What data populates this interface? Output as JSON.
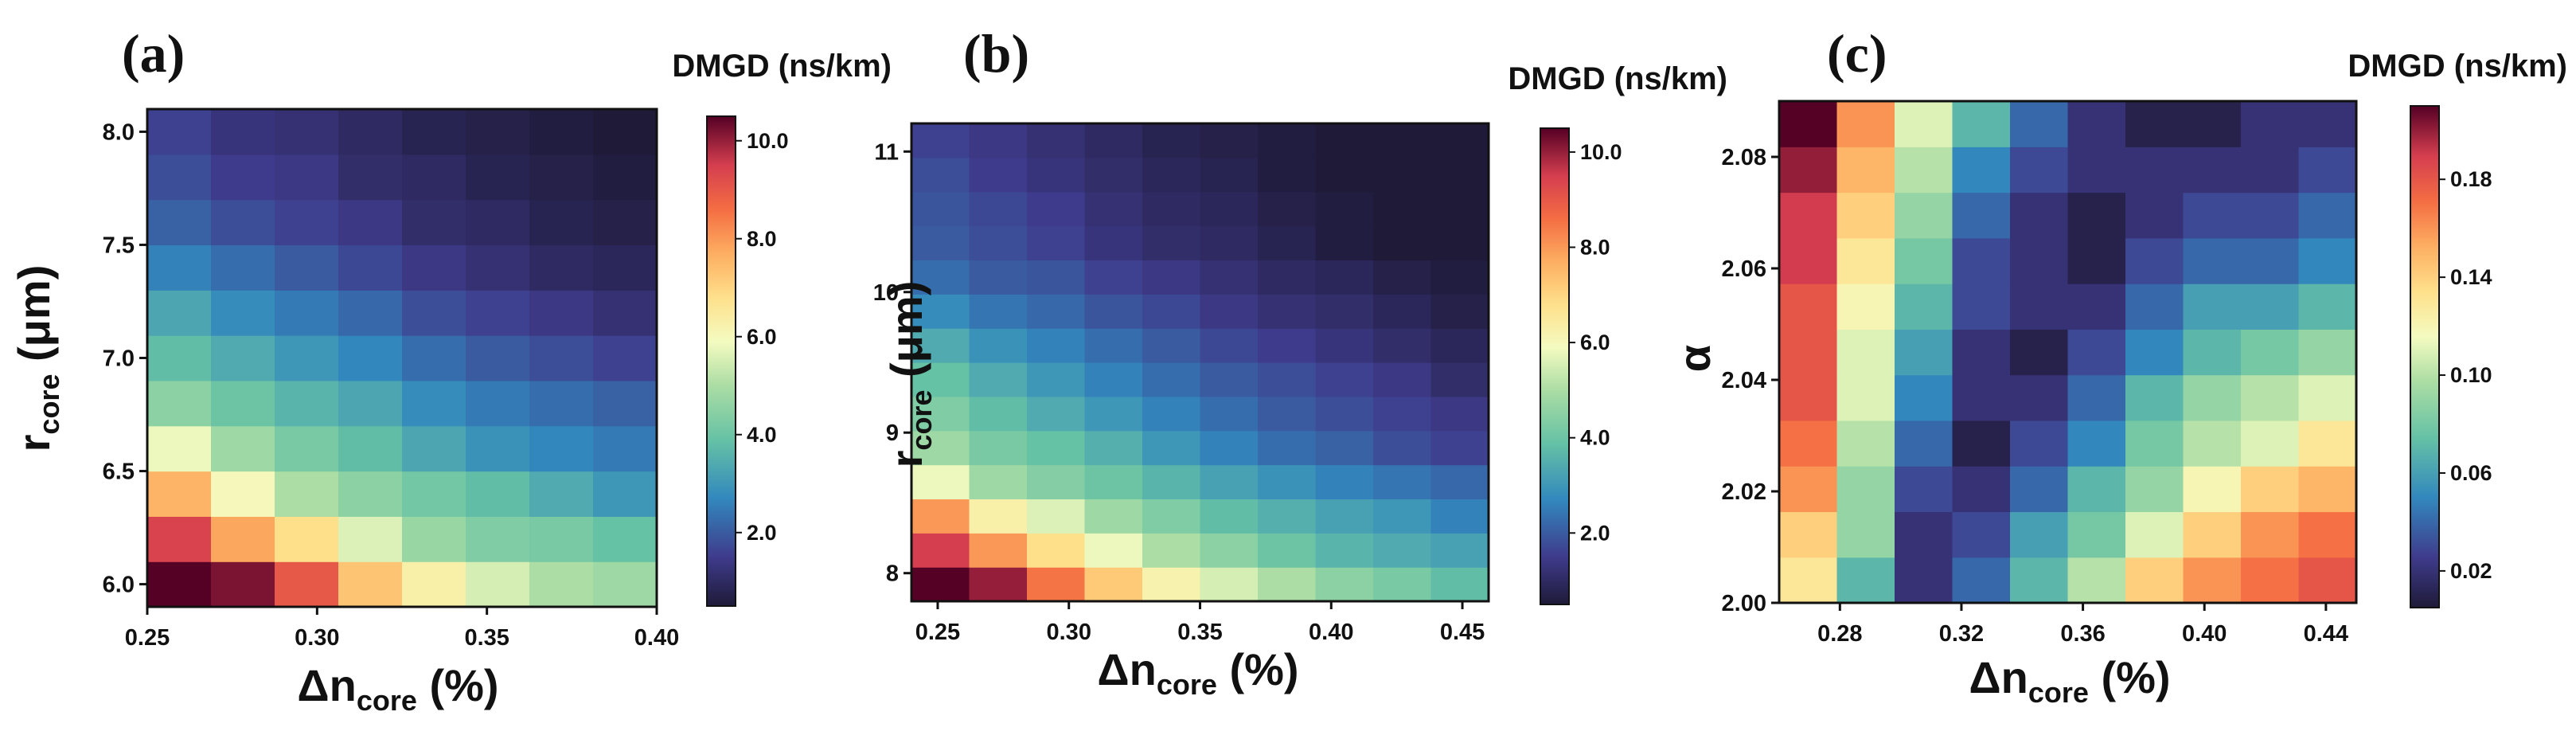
{
  "chart_data": [
    {
      "type": "heatmap",
      "panel_label": "(a)",
      "colorbar_title": "DMGD (ns/km)",
      "colorbar_ticks": [
        "2.0",
        "4.0",
        "6.0",
        "8.0",
        "10.0"
      ],
      "colorbar_tick_values": [
        2,
        4,
        6,
        8,
        10
      ],
      "colorbar_range": [
        0.5,
        10.5
      ],
      "xlabel": {
        "main": "Δn",
        "sub": "core",
        "suffix": " (%)"
      },
      "ylabel": {
        "main": "r",
        "sub": "core",
        "suffix": " (μm)"
      },
      "x_range": [
        0.25,
        0.4
      ],
      "y_range": [
        5.9,
        8.1
      ],
      "x_ticks": [
        "0.25",
        "0.30",
        "0.35",
        "0.40"
      ],
      "x_tick_values": [
        0.25,
        0.3,
        0.35,
        0.4
      ],
      "y_ticks": [
        "6.0",
        "6.5",
        "7.0",
        "7.5",
        "8.0"
      ],
      "y_tick_values": [
        6.0,
        6.5,
        7.0,
        7.5,
        8.0
      ],
      "rows_bottom_to_top": [
        [
          10.5,
          10.2,
          9.0,
          7.3,
          6.3,
          5.5,
          5.0,
          4.8
        ],
        [
          9.4,
          7.8,
          6.8,
          5.6,
          4.7,
          4.3,
          4.2,
          3.9
        ],
        [
          7.6,
          6.0,
          5.0,
          4.5,
          4.1,
          3.8,
          3.4,
          3.0
        ],
        [
          5.8,
          4.8,
          4.2,
          3.8,
          3.3,
          2.9,
          2.7,
          2.5
        ],
        [
          4.5,
          4.0,
          3.6,
          3.3,
          2.8,
          2.5,
          2.3,
          2.1
        ],
        [
          3.8,
          3.4,
          3.0,
          2.7,
          2.3,
          2.0,
          1.8,
          1.6
        ],
        [
          3.3,
          2.8,
          2.5,
          2.2,
          1.8,
          1.6,
          1.4,
          1.2
        ],
        [
          2.6,
          2.3,
          2.0,
          1.7,
          1.4,
          1.2,
          1.0,
          0.9
        ],
        [
          2.1,
          1.8,
          1.6,
          1.4,
          1.1,
          1.0,
          0.8,
          0.7
        ],
        [
          1.8,
          1.5,
          1.4,
          1.1,
          1.0,
          0.8,
          0.7,
          0.6
        ],
        [
          1.6,
          1.3,
          1.2,
          1.0,
          0.8,
          0.7,
          0.6,
          0.5
        ]
      ]
    },
    {
      "type": "heatmap",
      "panel_label": "(b)",
      "colorbar_title": "DMGD (ns/km)",
      "colorbar_ticks": [
        "2.0",
        "4.0",
        "6.0",
        "8.0",
        "10.0"
      ],
      "colorbar_tick_values": [
        2,
        4,
        6,
        8,
        10
      ],
      "colorbar_range": [
        0.5,
        10.5
      ],
      "xlabel": {
        "main": "Δn",
        "sub": "core",
        "suffix": " (%)"
      },
      "ylabel": {
        "main": "r",
        "sub": "core",
        "suffix": " (μm)"
      },
      "x_range": [
        0.24,
        0.46
      ],
      "y_range": [
        7.8,
        11.2
      ],
      "x_ticks": [
        "0.25",
        "0.30",
        "0.35",
        "0.40",
        "0.45"
      ],
      "x_tick_values": [
        0.25,
        0.3,
        0.35,
        0.4,
        0.45
      ],
      "y_ticks": [
        "8",
        "9",
        "10",
        "11"
      ],
      "y_tick_values": [
        8,
        9,
        10,
        11
      ],
      "rows_bottom_to_top": [
        [
          10.5,
          10.0,
          8.5,
          7.2,
          6.2,
          5.5,
          5.0,
          4.5,
          4.2,
          3.8
        ],
        [
          9.5,
          8.0,
          6.8,
          5.8,
          5.0,
          4.5,
          4.0,
          3.6,
          3.4,
          3.2
        ],
        [
          8.0,
          6.3,
          5.6,
          4.8,
          4.3,
          3.8,
          3.5,
          3.2,
          3.0,
          2.6
        ],
        [
          5.8,
          4.8,
          4.4,
          4.0,
          3.6,
          3.2,
          2.9,
          2.6,
          2.4,
          2.2
        ],
        [
          4.8,
          4.2,
          3.9,
          3.5,
          3.0,
          2.6,
          2.3,
          2.1,
          1.8,
          1.6
        ],
        [
          4.3,
          3.8,
          3.4,
          3.0,
          2.6,
          2.3,
          2.0,
          1.8,
          1.6,
          1.4
        ],
        [
          3.9,
          3.4,
          3.0,
          2.6,
          2.3,
          2.0,
          1.8,
          1.6,
          1.4,
          1.1
        ],
        [
          3.4,
          2.9,
          2.6,
          2.3,
          2.0,
          1.7,
          1.5,
          1.3,
          1.1,
          0.9
        ],
        [
          2.8,
          2.4,
          2.2,
          1.9,
          1.7,
          1.4,
          1.2,
          1.1,
          0.9,
          0.7
        ],
        [
          2.3,
          2.0,
          1.9,
          1.6,
          1.4,
          1.2,
          1.0,
          0.9,
          0.7,
          0.6
        ],
        [
          2.0,
          1.8,
          1.6,
          1.3,
          1.1,
          1.0,
          0.8,
          0.6,
          0.5,
          0.5
        ],
        [
          1.9,
          1.7,
          1.5,
          1.2,
          1.0,
          0.9,
          0.7,
          0.6,
          0.5,
          0.5
        ],
        [
          1.8,
          1.5,
          1.3,
          1.1,
          0.9,
          0.8,
          0.6,
          0.5,
          0.5,
          0.5
        ],
        [
          1.6,
          1.4,
          1.2,
          1.0,
          0.8,
          0.7,
          0.6,
          0.5,
          0.5,
          0.5
        ]
      ]
    },
    {
      "type": "heatmap",
      "panel_label": "(c)",
      "colorbar_title": "DMGD (ns/km)",
      "colorbar_ticks": [
        "0.02",
        "0.06",
        "0.10",
        "0.14",
        "0.18"
      ],
      "colorbar_tick_values": [
        0.02,
        0.06,
        0.1,
        0.14,
        0.18
      ],
      "colorbar_range": [
        0.005,
        0.21
      ],
      "xlabel": {
        "main": "Δn",
        "sub": "core",
        "suffix": " (%)"
      },
      "ylabel": {
        "main": "α",
        "sub": "",
        "suffix": ""
      },
      "x_range": [
        0.26,
        0.45
      ],
      "y_range": [
        2.0,
        2.09
      ],
      "x_ticks": [
        "0.28",
        "0.32",
        "0.36",
        "0.40",
        "0.44"
      ],
      "x_tick_values": [
        0.28,
        0.32,
        0.36,
        0.4,
        0.44
      ],
      "y_ticks": [
        "2.00",
        "2.02",
        "2.04",
        "2.06",
        "2.08"
      ],
      "y_tick_values": [
        2.0,
        2.02,
        2.04,
        2.06,
        2.08
      ],
      "rows_bottom_to_top": [
        [
          0.13,
          0.07,
          0.02,
          0.04,
          0.07,
          0.1,
          0.14,
          0.16,
          0.17,
          0.18
        ],
        [
          0.14,
          0.09,
          0.02,
          0.03,
          0.06,
          0.08,
          0.11,
          0.14,
          0.16,
          0.17
        ],
        [
          0.16,
          0.09,
          0.03,
          0.02,
          0.04,
          0.07,
          0.09,
          0.12,
          0.14,
          0.15
        ],
        [
          0.17,
          0.1,
          0.04,
          0.01,
          0.03,
          0.05,
          0.08,
          0.1,
          0.11,
          0.13
        ],
        [
          0.18,
          0.11,
          0.05,
          0.02,
          0.02,
          0.04,
          0.07,
          0.09,
          0.1,
          0.11
        ],
        [
          0.18,
          0.11,
          0.06,
          0.02,
          0.01,
          0.03,
          0.05,
          0.07,
          0.08,
          0.09
        ],
        [
          0.18,
          0.12,
          0.07,
          0.03,
          0.02,
          0.02,
          0.04,
          0.06,
          0.06,
          0.07
        ],
        [
          0.19,
          0.13,
          0.08,
          0.03,
          0.02,
          0.01,
          0.03,
          0.04,
          0.04,
          0.05
        ],
        [
          0.19,
          0.14,
          0.09,
          0.04,
          0.02,
          0.01,
          0.02,
          0.03,
          0.03,
          0.04
        ],
        [
          0.2,
          0.15,
          0.1,
          0.05,
          0.03,
          0.02,
          0.02,
          0.02,
          0.02,
          0.03
        ],
        [
          0.21,
          0.16,
          0.11,
          0.07,
          0.04,
          0.02,
          0.01,
          0.01,
          0.02,
          0.02
        ]
      ]
    }
  ]
}
